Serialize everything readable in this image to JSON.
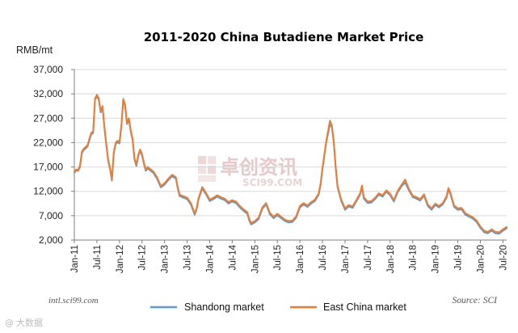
{
  "chart_data": {
    "type": "line",
    "title": "2011-2020 China Butadiene Market Price",
    "ylabel": "RMB/mt",
    "xlabel": "",
    "ylim": [
      2000,
      37000
    ],
    "yticks": [
      "2,000",
      "7,000",
      "12,000",
      "17,000",
      "22,000",
      "27,000",
      "32,000",
      "37,000"
    ],
    "ytick_values": [
      2000,
      7000,
      12000,
      17000,
      22000,
      27000,
      32000,
      37000
    ],
    "xticks": [
      "Jan-11",
      "Jul-11",
      "Jan-12",
      "Jul-12",
      "Jan-13",
      "Jul-13",
      "Jan-14",
      "Jul-14",
      "Jan-15",
      "Jul-15",
      "Jan-16",
      "Jul-16",
      "Jan-17",
      "Jul-17",
      "Jan-18",
      "Jul-18",
      "Jan-19",
      "Jul-19",
      "Jan-20",
      "Jul-20"
    ],
    "x_range_months": [
      0,
      115
    ],
    "legend_position": "bottom",
    "series": [
      {
        "name": "Shandong market",
        "color": "#5b9bd5",
        "points": [
          [
            0,
            15800
          ],
          [
            0.5,
            16300
          ],
          [
            1,
            16200
          ],
          [
            1.5,
            17000
          ],
          [
            2,
            19800
          ],
          [
            2.5,
            20500
          ],
          [
            3,
            20800
          ],
          [
            3.5,
            21200
          ],
          [
            4,
            22500
          ],
          [
            4.5,
            23700
          ],
          [
            5,
            24000
          ],
          [
            5.5,
            30800
          ],
          [
            6,
            31500
          ],
          [
            6.5,
            30800
          ],
          [
            7,
            28200
          ],
          [
            7.5,
            29200
          ],
          [
            8,
            25000
          ],
          [
            8.5,
            21500
          ],
          [
            9,
            18200
          ],
          [
            9.5,
            16500
          ],
          [
            10,
            14200
          ],
          [
            10.5,
            19800
          ],
          [
            11,
            21700
          ],
          [
            11.5,
            22100
          ],
          [
            12,
            21800
          ],
          [
            12.5,
            25200
          ],
          [
            13,
            30700
          ],
          [
            13.5,
            29500
          ],
          [
            14,
            25800
          ],
          [
            14.5,
            26700
          ],
          [
            15,
            24200
          ],
          [
            15.5,
            22500
          ],
          [
            16,
            18500
          ],
          [
            16.5,
            17200
          ],
          [
            17,
            19200
          ],
          [
            17.5,
            20300
          ],
          [
            18,
            19400
          ],
          [
            18.5,
            17600
          ],
          [
            19,
            16200
          ],
          [
            19.5,
            16700
          ],
          [
            20,
            16400
          ],
          [
            21,
            15800
          ],
          [
            22,
            14600
          ],
          [
            23,
            12800
          ],
          [
            24,
            13400
          ],
          [
            25,
            14300
          ],
          [
            26,
            15100
          ],
          [
            27,
            14600
          ],
          [
            27.5,
            12600
          ],
          [
            28,
            11000
          ],
          [
            29,
            10700
          ],
          [
            30,
            10400
          ],
          [
            31,
            9300
          ],
          [
            32,
            7200
          ],
          [
            32.5,
            8200
          ],
          [
            33,
            10200
          ],
          [
            34,
            12600
          ],
          [
            35,
            11400
          ],
          [
            36,
            10000
          ],
          [
            37,
            10400
          ],
          [
            38,
            10900
          ],
          [
            39,
            10500
          ],
          [
            40,
            10200
          ],
          [
            41,
            9500
          ],
          [
            42,
            9900
          ],
          [
            43,
            9600
          ],
          [
            44,
            8700
          ],
          [
            45,
            8000
          ],
          [
            46,
            7400
          ],
          [
            46.5,
            6100
          ],
          [
            47,
            5200
          ],
          [
            48,
            5600
          ],
          [
            49,
            6300
          ],
          [
            50,
            8400
          ],
          [
            51,
            9300
          ],
          [
            52,
            7300
          ],
          [
            53,
            6500
          ],
          [
            54,
            7100
          ],
          [
            55,
            6500
          ],
          [
            56,
            5900
          ],
          [
            57,
            5600
          ],
          [
            58,
            5700
          ],
          [
            59,
            6600
          ],
          [
            60,
            8700
          ],
          [
            61,
            9300
          ],
          [
            62,
            8800
          ],
          [
            63,
            9500
          ],
          [
            64,
            10000
          ],
          [
            65,
            11300
          ],
          [
            65.5,
            13300
          ],
          [
            66,
            16500
          ],
          [
            67,
            22000
          ],
          [
            68,
            25800
          ],
          [
            68.5,
            25100
          ],
          [
            69,
            22000
          ],
          [
            69.5,
            17000
          ],
          [
            70,
            12800
          ],
          [
            71,
            10000
          ],
          [
            72,
            8200
          ],
          [
            73,
            8900
          ],
          [
            74,
            8600
          ],
          [
            75,
            9900
          ],
          [
            76,
            11300
          ],
          [
            76.5,
            12900
          ],
          [
            77,
            10500
          ],
          [
            78,
            9600
          ],
          [
            79,
            9700
          ],
          [
            80,
            10400
          ],
          [
            81,
            11300
          ],
          [
            82,
            10900
          ],
          [
            83,
            11900
          ],
          [
            84,
            11200
          ],
          [
            85,
            9900
          ],
          [
            86,
            11800
          ],
          [
            87,
            13000
          ],
          [
            88,
            13800
          ],
          [
            89,
            12200
          ],
          [
            90,
            10800
          ],
          [
            91,
            10500
          ],
          [
            92,
            10100
          ],
          [
            93,
            11100
          ],
          [
            94,
            9000
          ],
          [
            95,
            8200
          ],
          [
            96,
            9200
          ],
          [
            97,
            8700
          ],
          [
            98,
            9300
          ],
          [
            99,
            10700
          ],
          [
            99.5,
            12400
          ],
          [
            100,
            11500
          ],
          [
            101,
            8800
          ],
          [
            102,
            8200
          ],
          [
            103,
            8300
          ],
          [
            104,
            7200
          ],
          [
            105,
            6800
          ],
          [
            106,
            6400
          ],
          [
            107,
            5700
          ],
          [
            108,
            4500
          ],
          [
            109,
            3600
          ],
          [
            110,
            3400
          ],
          [
            111,
            3900
          ],
          [
            112,
            3400
          ],
          [
            113,
            3300
          ],
          [
            114,
            3900
          ],
          [
            115,
            4400
          ]
        ]
      },
      {
        "name": "East China market",
        "color": "#ed7d31",
        "points": [
          [
            0,
            16000
          ],
          [
            0.5,
            16500
          ],
          [
            1,
            16400
          ],
          [
            1.5,
            17300
          ],
          [
            2,
            20100
          ],
          [
            2.5,
            20800
          ],
          [
            3,
            21100
          ],
          [
            3.5,
            21500
          ],
          [
            4,
            22800
          ],
          [
            4.5,
            24000
          ],
          [
            5,
            24300
          ],
          [
            5.5,
            31100
          ],
          [
            6,
            31800
          ],
          [
            6.5,
            31100
          ],
          [
            7,
            28500
          ],
          [
            7.5,
            29500
          ],
          [
            8,
            25300
          ],
          [
            8.5,
            21800
          ],
          [
            9,
            18500
          ],
          [
            9.5,
            16800
          ],
          [
            10,
            14500
          ],
          [
            10.5,
            20100
          ],
          [
            11,
            22000
          ],
          [
            11.5,
            22400
          ],
          [
            12,
            22100
          ],
          [
            12.5,
            25500
          ],
          [
            13,
            31000
          ],
          [
            13.5,
            29800
          ],
          [
            14,
            26100
          ],
          [
            14.5,
            27000
          ],
          [
            15,
            24500
          ],
          [
            15.5,
            22800
          ],
          [
            16,
            18800
          ],
          [
            16.5,
            17500
          ],
          [
            17,
            19500
          ],
          [
            17.5,
            20600
          ],
          [
            18,
            19700
          ],
          [
            18.5,
            17900
          ],
          [
            19,
            16500
          ],
          [
            19.5,
            17000
          ],
          [
            20,
            16700
          ],
          [
            21,
            16100
          ],
          [
            22,
            14900
          ],
          [
            23,
            13100
          ],
          [
            24,
            13700
          ],
          [
            25,
            14600
          ],
          [
            26,
            15400
          ],
          [
            27,
            14900
          ],
          [
            27.5,
            12900
          ],
          [
            28,
            11300
          ],
          [
            29,
            11000
          ],
          [
            30,
            10700
          ],
          [
            31,
            9600
          ],
          [
            32,
            7500
          ],
          [
            32.5,
            8500
          ],
          [
            33,
            10500
          ],
          [
            34,
            12900
          ],
          [
            35,
            11700
          ],
          [
            36,
            10300
          ],
          [
            37,
            10700
          ],
          [
            38,
            11200
          ],
          [
            39,
            10800
          ],
          [
            40,
            10500
          ],
          [
            41,
            9800
          ],
          [
            42,
            10200
          ],
          [
            43,
            9900
          ],
          [
            44,
            9000
          ],
          [
            45,
            8300
          ],
          [
            46,
            7700
          ],
          [
            46.5,
            6400
          ],
          [
            47,
            5500
          ],
          [
            48,
            5900
          ],
          [
            49,
            6600
          ],
          [
            50,
            8700
          ],
          [
            51,
            9600
          ],
          [
            52,
            7600
          ],
          [
            53,
            6800
          ],
          [
            54,
            7400
          ],
          [
            55,
            6800
          ],
          [
            56,
            6200
          ],
          [
            57,
            5900
          ],
          [
            58,
            6000
          ],
          [
            59,
            6900
          ],
          [
            60,
            9000
          ],
          [
            61,
            9600
          ],
          [
            62,
            9100
          ],
          [
            63,
            9800
          ],
          [
            64,
            10300
          ],
          [
            65,
            11600
          ],
          [
            65.5,
            13600
          ],
          [
            66,
            16800
          ],
          [
            67,
            22300
          ],
          [
            68,
            26500
          ],
          [
            68.5,
            25500
          ],
          [
            69,
            22300
          ],
          [
            69.5,
            17300
          ],
          [
            70,
            13100
          ],
          [
            71,
            10300
          ],
          [
            72,
            8500
          ],
          [
            73,
            9200
          ],
          [
            74,
            8900
          ],
          [
            75,
            10200
          ],
          [
            76,
            11600
          ],
          [
            76.5,
            13200
          ],
          [
            77,
            10800
          ],
          [
            78,
            9900
          ],
          [
            79,
            10000
          ],
          [
            80,
            10700
          ],
          [
            81,
            11600
          ],
          [
            82,
            11200
          ],
          [
            83,
            12200
          ],
          [
            84,
            11500
          ],
          [
            85,
            10200
          ],
          [
            86,
            12100
          ],
          [
            87,
            13300
          ],
          [
            88,
            14400
          ],
          [
            89,
            12500
          ],
          [
            90,
            11100
          ],
          [
            91,
            10800
          ],
          [
            92,
            10400
          ],
          [
            93,
            11400
          ],
          [
            94,
            9300
          ],
          [
            95,
            8500
          ],
          [
            96,
            9500
          ],
          [
            97,
            9000
          ],
          [
            98,
            9600
          ],
          [
            99,
            11000
          ],
          [
            99.5,
            12700
          ],
          [
            100,
            11800
          ],
          [
            101,
            9100
          ],
          [
            102,
            8500
          ],
          [
            103,
            8600
          ],
          [
            104,
            7500
          ],
          [
            105,
            7100
          ],
          [
            106,
            6700
          ],
          [
            107,
            6000
          ],
          [
            108,
            4800
          ],
          [
            109,
            3900
          ],
          [
            110,
            3700
          ],
          [
            111,
            4200
          ],
          [
            112,
            3700
          ],
          [
            113,
            3600
          ],
          [
            114,
            4200
          ],
          [
            115,
            4700
          ]
        ]
      }
    ],
    "annotations": {
      "source": "Source: SCI",
      "website": "intl.sci99.com",
      "watermark_cn": "卓创资讯",
      "watermark_en": "SCI99.COM",
      "corner_watermark": "大数据",
      "corner_watermark_prefix": "@"
    }
  }
}
